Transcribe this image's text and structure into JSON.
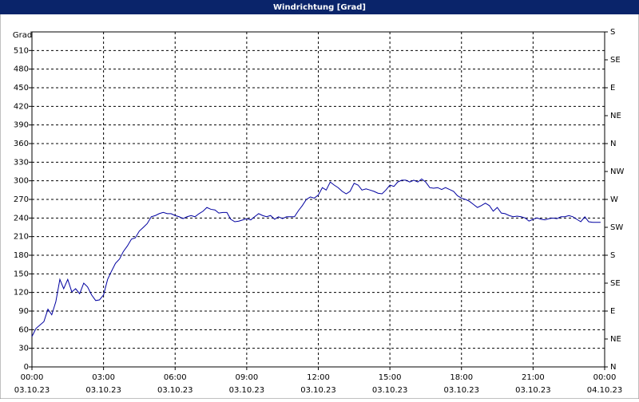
{
  "chart_data": {
    "type": "line",
    "title": "Windrichtung [Grad]",
    "ylabel": "Grad",
    "color": "#0000a0",
    "grid": true,
    "xlim": [
      0,
      24
    ],
    "xticks": [
      {
        "value": 0,
        "label": "00:00",
        "date": "03.10.23"
      },
      {
        "value": 3,
        "label": "03:00",
        "date": "03.10.23"
      },
      {
        "value": 6,
        "label": "06:00",
        "date": "03.10.23"
      },
      {
        "value": 9,
        "label": "09:00",
        "date": "03.10.23"
      },
      {
        "value": 12,
        "label": "12:00",
        "date": "03.10.23"
      },
      {
        "value": 15,
        "label": "15:00",
        "date": "03.10.23"
      },
      {
        "value": 18,
        "label": "18:00",
        "date": "03.10.23"
      },
      {
        "value": 21,
        "label": "21:00",
        "date": "03.10.23"
      },
      {
        "value": 24,
        "label": "00:00",
        "date": "04.10.23"
      }
    ],
    "ylim": [
      0,
      540
    ],
    "yticks": [
      0,
      30,
      60,
      90,
      120,
      150,
      180,
      210,
      240,
      270,
      300,
      330,
      360,
      390,
      420,
      450,
      480,
      510
    ],
    "y2lim": [
      0,
      540
    ],
    "y2ticks": [
      {
        "value": 0,
        "label": "N"
      },
      {
        "value": 45,
        "label": "NE"
      },
      {
        "value": 90,
        "label": "E"
      },
      {
        "value": 135,
        "label": "SE"
      },
      {
        "value": 180,
        "label": "S"
      },
      {
        "value": 225,
        "label": "SW"
      },
      {
        "value": 270,
        "label": "W"
      },
      {
        "value": 315,
        "label": "NW"
      },
      {
        "value": 360,
        "label": "N"
      },
      {
        "value": 405,
        "label": "NE"
      },
      {
        "value": 450,
        "label": "E"
      },
      {
        "value": 495,
        "label": "SE"
      },
      {
        "value": 540,
        "label": "S"
      }
    ],
    "x": [
      0,
      0.17,
      0.5,
      0.67,
      0.83,
      1,
      1.17,
      1.33,
      1.5,
      1.67,
      1.83,
      2,
      2.17,
      2.33,
      2.5,
      2.67,
      2.83,
      3,
      3.17,
      3.33,
      3.5,
      3.67,
      3.83,
      4,
      4.17,
      4.33,
      4.5,
      4.67,
      4.83,
      5,
      5.17,
      5.33,
      5.5,
      5.67,
      5.83,
      6,
      6.17,
      6.33,
      6.5,
      6.67,
      6.83,
      7,
      7.17,
      7.33,
      7.5,
      7.67,
      7.83,
      8,
      8.17,
      8.33,
      8.5,
      8.67,
      9,
      9.17,
      9.33,
      9.5,
      9.67,
      9.83,
      10,
      10.17,
      10.33,
      10.5,
      10.67,
      11,
      11.17,
      11.33,
      11.5,
      11.67,
      11.83,
      12,
      12.17,
      12.33,
      12.5,
      12.67,
      12.83,
      13,
      13.17,
      13.33,
      13.5,
      13.67,
      13.83,
      14,
      14.17,
      14.33,
      14.5,
      14.67,
      14.83,
      15,
      15.17,
      15.33,
      15.5,
      15.67,
      15.83,
      16,
      16.17,
      16.33,
      16.5,
      16.67,
      16.83,
      17,
      17.17,
      17.33,
      17.5,
      17.67,
      17.83,
      18,
      18.17,
      18.33,
      18.5,
      18.67,
      18.83,
      19,
      19.17,
      19.33,
      19.5,
      19.67,
      19.83,
      20,
      20.17,
      20.33,
      20.5,
      20.67,
      20.83,
      21,
      21.17,
      21.33,
      21.5,
      21.67,
      21.83,
      22,
      22.17,
      22.33,
      22.5,
      22.67,
      22.83,
      23,
      23.17,
      23.33,
      23.5,
      23.83
    ],
    "values": [
      49,
      62,
      73,
      93,
      84,
      105,
      141,
      126,
      141,
      121,
      126,
      118,
      135,
      129,
      116,
      107,
      108,
      116,
      141,
      154,
      167,
      174,
      186,
      195,
      206,
      208,
      219,
      225,
      231,
      242,
      244,
      247,
      249,
      247,
      247,
      244,
      242,
      239,
      242,
      244,
      242,
      247,
      251,
      257,
      254,
      253,
      248,
      249,
      249,
      238,
      234,
      235,
      239,
      237,
      242,
      247,
      244,
      242,
      244,
      238,
      242,
      239,
      242,
      242,
      252,
      260,
      270,
      274,
      272,
      277,
      289,
      285,
      298,
      293,
      289,
      283,
      279,
      283,
      296,
      293,
      285,
      287,
      285,
      283,
      280,
      279,
      285,
      293,
      291,
      298,
      301,
      301,
      298,
      301,
      298,
      303,
      298,
      289,
      288,
      289,
      286,
      289,
      286,
      283,
      276,
      272,
      270,
      267,
      262,
      257,
      260,
      264,
      260,
      251,
      257,
      248,
      247,
      244,
      242,
      243,
      242,
      240,
      235,
      238,
      240,
      238,
      237,
      239,
      240,
      239,
      242,
      242,
      244,
      242,
      238,
      234,
      242,
      234,
      233,
      233
    ]
  }
}
